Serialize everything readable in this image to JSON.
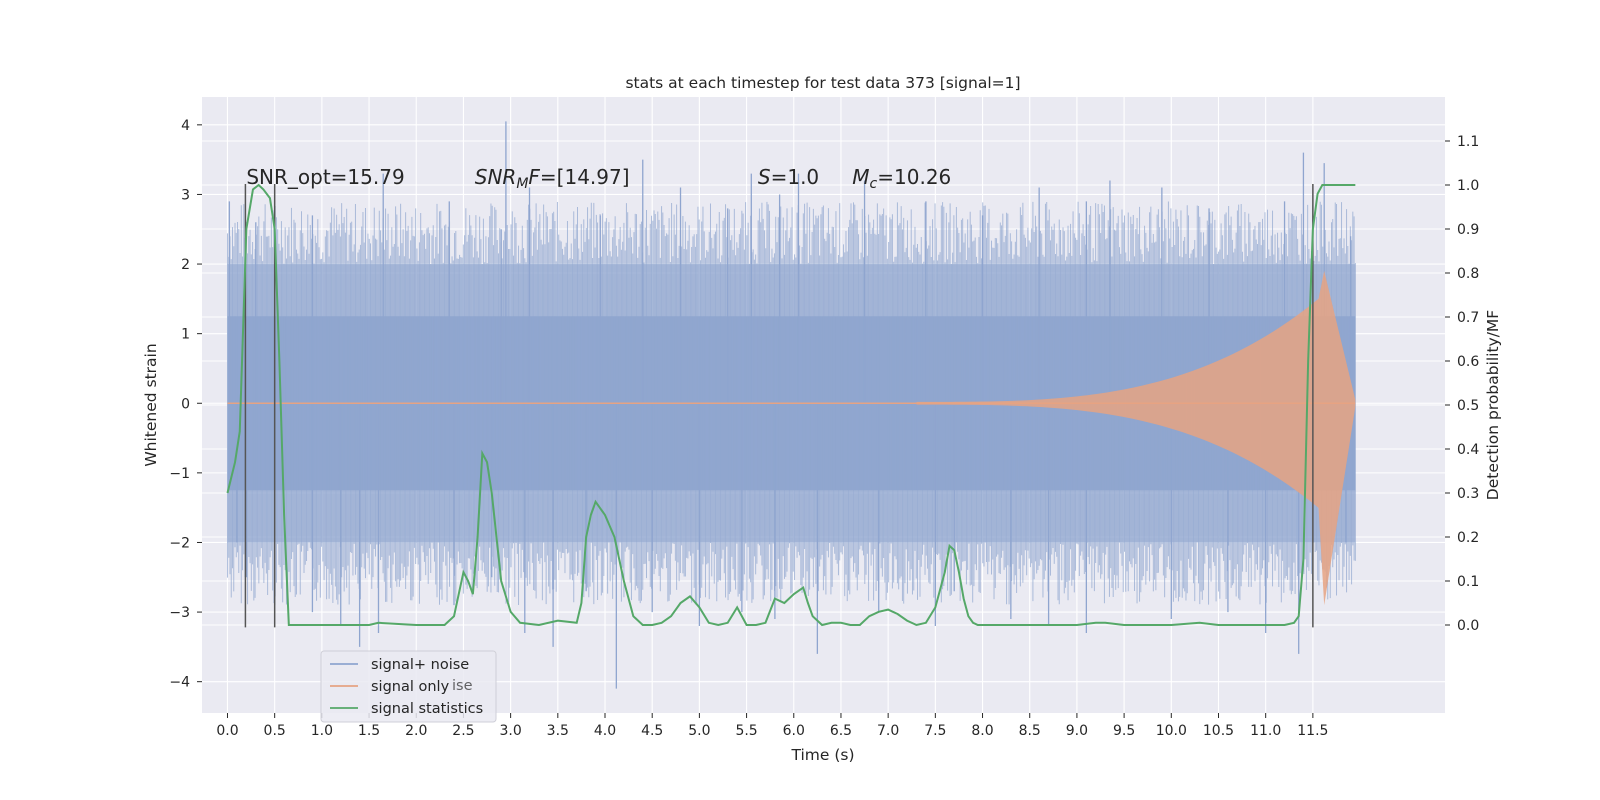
{
  "chart_data": {
    "type": "line",
    "title": "stats at each timestep for test data 373 [signal=1]",
    "xlabel": "Time (s)",
    "ylabel": "Whitened strain",
    "y2label": "Detection probability/MF",
    "xlim": [
      -0.27,
      12.9
    ],
    "ylim": [
      -4.45,
      4.4
    ],
    "y2lim": [
      -0.2,
      1.2
    ],
    "xticks": [
      "0.0",
      "0.5",
      "1.0",
      "1.5",
      "2.0",
      "2.5",
      "3.0",
      "3.5",
      "4.0",
      "4.5",
      "5.0",
      "5.5",
      "6.0",
      "6.5",
      "7.0",
      "7.5",
      "8.0",
      "8.5",
      "9.0",
      "9.5",
      "10.0",
      "10.5",
      "11.0",
      "11.5"
    ],
    "yticks": [
      "4",
      "3",
      "2",
      "1",
      "0",
      "−1",
      "−2",
      "−3",
      "−4"
    ],
    "y2ticks": [
      "1.1",
      "1.0",
      "0.9",
      "0.8",
      "0.7",
      "0.6",
      "0.5",
      "0.4",
      "0.3",
      "0.2",
      "0.1",
      "0.0"
    ],
    "grid": true,
    "legend_position": "lower-left",
    "legend_overlap_text": "ise",
    "annotations": [
      {
        "text": "SNR_opt=15.79",
        "x": 0.2
      },
      {
        "text": "SNR",
        "sub": "M",
        "rest": "F=[14.97]",
        "x": 2.62,
        "italic": true
      },
      {
        "text": "S",
        "rest": "=1.0",
        "x": 5.62,
        "italic": true
      },
      {
        "text": "M",
        "sub": "c",
        "rest": "=10.26",
        "x": 6.62,
        "italic": true
      }
    ],
    "vlines": [
      0.19,
      0.5,
      11.5
    ],
    "vline_range": [
      -3.22,
      3.15
    ],
    "series": [
      {
        "name": "signal+ noise",
        "color": "#8fa5cf",
        "envelope_t": [
          0.0,
          0.5,
          1.0,
          1.5,
          2.0,
          2.5,
          3.0,
          3.5,
          4.0,
          4.5,
          5.0,
          5.5,
          6.0,
          6.5,
          7.0,
          7.5,
          8.0,
          8.5,
          9.0,
          9.5,
          10.0,
          10.5,
          11.0,
          11.5,
          11.95
        ],
        "band_inner": 1.25,
        "band_outer": 2.0,
        "peaks": [
          [
            0.02,
            2.9
          ],
          [
            0.3,
            2.6
          ],
          [
            0.9,
            2.7
          ],
          [
            1.65,
            3.3
          ],
          [
            2.35,
            2.9
          ],
          [
            2.9,
            2.5
          ],
          [
            2.95,
            4.05
          ],
          [
            3.2,
            3.1
          ],
          [
            3.95,
            2.7
          ],
          [
            4.4,
            3.5
          ],
          [
            4.8,
            3.1
          ],
          [
            5.3,
            2.8
          ],
          [
            5.55,
            3.3
          ],
          [
            5.85,
            3.0
          ],
          [
            6.05,
            3.3
          ],
          [
            6.75,
            3.2
          ],
          [
            7.4,
            2.9
          ],
          [
            8.0,
            2.7
          ],
          [
            8.6,
            3.1
          ],
          [
            9.1,
            2.9
          ],
          [
            9.35,
            3.2
          ],
          [
            9.9,
            3.1
          ],
          [
            10.4,
            2.8
          ],
          [
            11.2,
            2.9
          ],
          [
            11.4,
            3.6
          ],
          [
            11.62,
            3.45
          ],
          [
            11.9,
            2.4
          ]
        ],
        "troughs": [
          [
            0.1,
            -2.0
          ],
          [
            0.2,
            -2.5
          ],
          [
            0.5,
            -2.9
          ],
          [
            0.9,
            -3.0
          ],
          [
            1.2,
            -3.2
          ],
          [
            1.4,
            -3.5
          ],
          [
            1.6,
            -3.3
          ],
          [
            2.4,
            -2.9
          ],
          [
            2.8,
            -2.5
          ],
          [
            3.15,
            -3.3
          ],
          [
            3.45,
            -3.5
          ],
          [
            3.8,
            -2.7
          ],
          [
            4.12,
            -4.1
          ],
          [
            4.5,
            -3.0
          ],
          [
            5.0,
            -3.2
          ],
          [
            5.45,
            -3.0
          ],
          [
            5.8,
            -3.1
          ],
          [
            6.25,
            -3.6
          ],
          [
            6.9,
            -3.0
          ],
          [
            7.5,
            -3.2
          ],
          [
            7.7,
            -2.7
          ],
          [
            8.3,
            -3.1
          ],
          [
            8.7,
            -3.2
          ],
          [
            9.1,
            -3.3
          ],
          [
            10.0,
            -3.1
          ],
          [
            10.6,
            -3.0
          ],
          [
            11.0,
            -3.3
          ],
          [
            11.35,
            -3.6
          ],
          [
            11.85,
            -2.0
          ]
        ]
      },
      {
        "name": "signal only",
        "color": "#e6a383",
        "chirp_start": 7.3,
        "chirp_peak_t": 11.62,
        "chirp_peak_amp_up": 1.9,
        "chirp_peak_amp_down": -2.9,
        "end_t": 11.95
      },
      {
        "name": "signal statistics",
        "color": "#55a868",
        "axis": "right",
        "x": [
          0.0,
          0.08,
          0.13,
          0.2,
          0.27,
          0.33,
          0.38,
          0.45,
          0.5,
          0.55,
          0.6,
          0.65,
          0.7,
          0.75,
          1.0,
          1.5,
          1.6,
          2.0,
          2.3,
          2.4,
          2.45,
          2.5,
          2.55,
          2.6,
          2.65,
          2.7,
          2.75,
          2.8,
          2.85,
          2.9,
          3.0,
          3.1,
          3.3,
          3.5,
          3.7,
          3.75,
          3.8,
          3.85,
          3.9,
          4.0,
          4.1,
          4.2,
          4.3,
          4.4,
          4.5,
          4.6,
          4.7,
          4.8,
          4.9,
          5.0,
          5.1,
          5.2,
          5.3,
          5.4,
          5.5,
          5.6,
          5.7,
          5.8,
          5.9,
          6.0,
          6.1,
          6.15,
          6.2,
          6.3,
          6.4,
          6.5,
          6.6,
          6.7,
          6.8,
          6.9,
          7.0,
          7.1,
          7.2,
          7.3,
          7.4,
          7.5,
          7.6,
          7.65,
          7.7,
          7.75,
          7.8,
          7.85,
          7.9,
          7.95,
          8.0,
          8.1,
          8.5,
          9.0,
          9.2,
          9.3,
          9.5,
          10.0,
          10.3,
          10.5,
          11.0,
          11.2,
          11.3,
          11.35,
          11.4,
          11.45,
          11.5,
          11.55,
          11.6,
          11.7,
          11.95
        ],
        "y": [
          0.3,
          0.37,
          0.44,
          0.9,
          0.99,
          1.0,
          0.99,
          0.97,
          0.9,
          0.6,
          0.25,
          0.0,
          0.0,
          0.0,
          0.0,
          0.0,
          0.005,
          0.0,
          0.0,
          0.02,
          0.07,
          0.12,
          0.1,
          0.07,
          0.2,
          0.39,
          0.37,
          0.3,
          0.2,
          0.1,
          0.03,
          0.005,
          0.0,
          0.01,
          0.005,
          0.05,
          0.2,
          0.25,
          0.28,
          0.25,
          0.2,
          0.1,
          0.02,
          0.0,
          0.0,
          0.005,
          0.02,
          0.05,
          0.065,
          0.04,
          0.005,
          0.0,
          0.005,
          0.04,
          0.0,
          0.0,
          0.005,
          0.06,
          0.05,
          0.07,
          0.085,
          0.05,
          0.02,
          0.0,
          0.005,
          0.005,
          0.0,
          0.0,
          0.02,
          0.03,
          0.035,
          0.025,
          0.01,
          0.0,
          0.005,
          0.04,
          0.12,
          0.18,
          0.17,
          0.12,
          0.06,
          0.02,
          0.005,
          0.0,
          0.0,
          0.0,
          0.0,
          0.0,
          0.005,
          0.005,
          0.0,
          0.0,
          0.005,
          0.0,
          0.0,
          0.0,
          0.005,
          0.02,
          0.15,
          0.6,
          0.9,
          0.98,
          1.0,
          1.0,
          1.0
        ]
      }
    ]
  }
}
